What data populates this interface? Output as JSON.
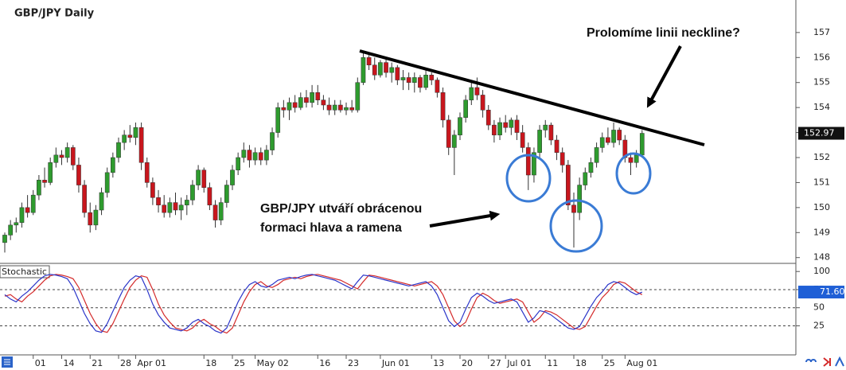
{
  "chart_data": [
    {
      "type": "candlestick",
      "title": "GBP/JPY Daily",
      "categories": [
        null,
        null,
        null,
        null,
        null,
        "01",
        null,
        null,
        null,
        null,
        "14",
        null,
        null,
        null,
        null,
        "21",
        null,
        null,
        null,
        null,
        "28",
        null,
        null,
        "Apr 01",
        null,
        null,
        null,
        null,
        null,
        null,
        null,
        null,
        null,
        null,
        null,
        "18",
        null,
        null,
        null,
        null,
        "25",
        null,
        null,
        null,
        "May 02",
        null,
        null,
        null,
        null,
        null,
        null,
        null,
        null,
        null,
        null,
        "16",
        null,
        null,
        null,
        null,
        "23",
        null,
        null,
        null,
        null,
        null,
        "Jun 01",
        null,
        null,
        null,
        null,
        null,
        null,
        null,
        null,
        "13",
        null,
        null,
        null,
        null,
        "20",
        null,
        null,
        null,
        null,
        "27",
        null,
        null,
        "Jul 01",
        null,
        null,
        null,
        null,
        null,
        null,
        "11",
        null,
        null,
        null,
        null,
        "18",
        null,
        null,
        null,
        null,
        "25",
        null,
        null,
        null,
        "Aug 01",
        null,
        null,
        null
      ],
      "ohlc": [
        [
          148.6,
          149.0,
          148.2,
          148.9
        ],
        [
          148.9,
          149.5,
          148.7,
          149.3
        ],
        [
          149.3,
          149.6,
          149.0,
          149.4
        ],
        [
          149.4,
          150.2,
          149.2,
          150.0
        ],
        [
          150.0,
          150.5,
          149.6,
          149.8
        ],
        [
          149.8,
          150.7,
          149.7,
          150.5
        ],
        [
          150.5,
          151.3,
          150.3,
          151.1
        ],
        [
          151.1,
          151.6,
          150.8,
          151.0
        ],
        [
          151.0,
          152.0,
          150.9,
          151.8
        ],
        [
          151.8,
          152.4,
          151.6,
          152.1
        ],
        [
          152.1,
          152.3,
          151.7,
          152.0
        ],
        [
          152.0,
          152.6,
          151.8,
          152.4
        ],
        [
          152.4,
          152.5,
          151.5,
          151.7
        ],
        [
          151.7,
          152.0,
          150.6,
          150.9
        ],
        [
          150.9,
          151.1,
          149.6,
          149.8
        ],
        [
          149.8,
          150.2,
          149.0,
          149.3
        ],
        [
          149.3,
          150.1,
          149.1,
          149.9
        ],
        [
          149.9,
          150.8,
          149.7,
          150.6
        ],
        [
          150.6,
          151.6,
          150.4,
          151.4
        ],
        [
          151.4,
          152.2,
          151.2,
          152.0
        ],
        [
          152.0,
          152.8,
          151.8,
          152.6
        ],
        [
          152.6,
          153.1,
          152.3,
          152.9
        ],
        [
          152.9,
          153.3,
          152.6,
          152.8
        ],
        [
          152.8,
          153.4,
          152.5,
          153.2
        ],
        [
          153.2,
          153.4,
          151.5,
          151.8
        ],
        [
          151.8,
          152.0,
          150.8,
          151.0
        ],
        [
          151.0,
          151.2,
          150.1,
          150.4
        ],
        [
          150.4,
          150.7,
          149.8,
          150.1
        ],
        [
          150.1,
          150.5,
          149.6,
          149.8
        ],
        [
          149.8,
          150.4,
          149.6,
          150.2
        ],
        [
          150.2,
          150.6,
          149.7,
          149.9
        ],
        [
          149.9,
          150.4,
          149.5,
          150.1
        ],
        [
          150.1,
          150.5,
          149.7,
          150.3
        ],
        [
          150.3,
          151.1,
          150.1,
          150.9
        ],
        [
          150.9,
          151.7,
          150.7,
          151.5
        ],
        [
          151.5,
          151.6,
          150.6,
          150.8
        ],
        [
          150.8,
          151.0,
          149.9,
          150.1
        ],
        [
          150.1,
          150.3,
          149.2,
          149.5
        ],
        [
          149.5,
          150.4,
          149.3,
          150.2
        ],
        [
          150.2,
          151.1,
          150.0,
          150.9
        ],
        [
          150.9,
          151.7,
          150.7,
          151.5
        ],
        [
          151.5,
          152.2,
          151.3,
          152.0
        ],
        [
          152.0,
          152.6,
          151.8,
          152.3
        ],
        [
          152.3,
          152.5,
          151.6,
          151.9
        ],
        [
          151.9,
          152.4,
          151.7,
          152.2
        ],
        [
          152.2,
          152.4,
          151.7,
          151.9
        ],
        [
          151.9,
          152.5,
          151.7,
          152.3
        ],
        [
          152.3,
          153.2,
          152.1,
          153.0
        ],
        [
          153.0,
          154.2,
          152.8,
          154.0
        ],
        [
          154.0,
          154.3,
          153.6,
          153.9
        ],
        [
          153.9,
          154.4,
          153.5,
          154.2
        ],
        [
          154.2,
          154.5,
          153.8,
          154.0
        ],
        [
          154.0,
          154.6,
          153.9,
          154.4
        ],
        [
          154.4,
          154.7,
          154.0,
          154.2
        ],
        [
          154.2,
          154.9,
          154.0,
          154.6
        ],
        [
          154.6,
          154.9,
          154.1,
          154.3
        ],
        [
          154.3,
          154.5,
          153.9,
          154.1
        ],
        [
          154.1,
          154.4,
          153.7,
          153.9
        ],
        [
          153.9,
          154.3,
          153.7,
          154.1
        ],
        [
          154.1,
          154.3,
          153.8,
          153.9
        ],
        [
          153.9,
          154.2,
          153.7,
          154.0
        ],
        [
          154.0,
          154.3,
          153.8,
          153.9
        ],
        [
          153.9,
          155.2,
          153.8,
          155.0
        ],
        [
          155.0,
          156.2,
          154.9,
          156.0
        ],
        [
          156.0,
          156.1,
          155.5,
          155.7
        ],
        [
          155.7,
          156.0,
          155.1,
          155.3
        ],
        [
          155.3,
          155.9,
          155.2,
          155.8
        ],
        [
          155.8,
          156.0,
          155.2,
          155.4
        ],
        [
          155.4,
          155.8,
          155.0,
          155.6
        ],
        [
          155.6,
          155.7,
          154.9,
          155.1
        ],
        [
          155.1,
          155.5,
          154.7,
          155.2
        ],
        [
          155.2,
          155.4,
          154.7,
          155.0
        ],
        [
          155.0,
          155.4,
          154.6,
          155.2
        ],
        [
          155.2,
          155.3,
          154.6,
          154.8
        ],
        [
          154.8,
          155.5,
          154.7,
          155.3
        ],
        [
          155.3,
          155.4,
          154.9,
          155.1
        ],
        [
          155.1,
          155.2,
          154.4,
          154.6
        ],
        [
          154.6,
          154.8,
          153.2,
          153.5
        ],
        [
          153.5,
          153.7,
          152.1,
          152.4
        ],
        [
          152.4,
          153.1,
          151.3,
          152.9
        ],
        [
          152.9,
          153.8,
          152.7,
          153.6
        ],
        [
          153.6,
          154.5,
          153.4,
          154.3
        ],
        [
          154.3,
          155.1,
          154.1,
          154.8
        ],
        [
          154.8,
          155.2,
          154.3,
          154.5
        ],
        [
          154.5,
          154.7,
          153.6,
          153.9
        ],
        [
          153.9,
          154.1,
          153.1,
          153.3
        ],
        [
          153.3,
          153.5,
          152.6,
          152.9
        ],
        [
          152.9,
          153.6,
          152.7,
          153.4
        ],
        [
          153.4,
          153.7,
          153.0,
          153.2
        ],
        [
          153.2,
          153.6,
          152.9,
          153.5
        ],
        [
          153.5,
          153.7,
          152.7,
          153.0
        ],
        [
          153.0,
          153.3,
          152.2,
          152.4
        ],
        [
          152.4,
          152.6,
          150.7,
          151.3
        ],
        [
          151.3,
          152.4,
          151.0,
          152.2
        ],
        [
          152.2,
          153.3,
          152.0,
          153.1
        ],
        [
          153.1,
          153.5,
          152.8,
          153.3
        ],
        [
          153.3,
          153.4,
          152.5,
          152.7
        ],
        [
          152.7,
          152.9,
          151.9,
          152.2
        ],
        [
          152.2,
          152.4,
          151.4,
          151.7
        ],
        [
          151.7,
          151.9,
          149.9,
          150.1
        ],
        [
          150.1,
          150.6,
          148.4,
          149.8
        ],
        [
          149.8,
          151.2,
          149.5,
          150.9
        ],
        [
          150.9,
          151.6,
          150.7,
          151.4
        ],
        [
          151.4,
          152.0,
          151.2,
          151.8
        ],
        [
          151.8,
          152.6,
          151.6,
          152.4
        ],
        [
          152.4,
          153.0,
          152.2,
          152.8
        ],
        [
          152.8,
          153.2,
          152.5,
          152.6
        ],
        [
          152.6,
          153.4,
          152.4,
          153.1
        ],
        [
          153.1,
          153.2,
          152.5,
          152.7
        ],
        [
          152.7,
          152.9,
          151.8,
          152.0
        ],
        [
          152.0,
          152.2,
          151.3,
          151.8
        ],
        [
          151.8,
          152.3,
          151.6,
          152.1
        ],
        [
          152.1,
          153.1,
          152.0,
          152.97
        ]
      ],
      "up_color": "#2e9b2e",
      "down_color": "#c8161d",
      "ylim": [
        147.8,
        158.3
      ],
      "yticks": [
        148,
        149,
        150,
        151,
        152,
        153,
        154,
        155,
        156,
        157
      ],
      "grid": false,
      "annotations": [
        "Prolomíme linii neckline?",
        "GBP/JPY utváří obrácenou",
        "formaci hlava a ramena"
      ]
    },
    {
      "type": "line",
      "title": "Stochastic",
      "series": [
        {
          "color": "#2b35c9",
          "last_value_label": "71.60",
          "values": [
            68,
            62,
            58,
            66,
            72,
            80,
            88,
            94,
            96,
            95,
            93,
            90,
            78,
            60,
            42,
            28,
            18,
            16,
            28,
            45,
            62,
            78,
            88,
            94,
            92,
            75,
            55,
            40,
            30,
            22,
            20,
            18,
            22,
            30,
            34,
            28,
            24,
            18,
            15,
            22,
            40,
            58,
            72,
            82,
            86,
            80,
            78,
            82,
            88,
            90,
            92,
            90,
            93,
            95,
            96,
            94,
            92,
            90,
            88,
            84,
            80,
            76,
            86,
            95,
            94,
            92,
            90,
            88,
            86,
            84,
            82,
            80,
            82,
            84,
            86,
            80,
            68,
            50,
            32,
            24,
            30,
            48,
            64,
            70,
            66,
            60,
            56,
            58,
            60,
            62,
            58,
            44,
            30,
            36,
            46,
            44,
            40,
            34,
            28,
            22,
            20,
            24,
            38,
            52,
            64,
            72,
            82,
            86,
            84,
            78,
            72,
            68,
            71.6
          ]
        },
        {
          "color": "#d42a2a",
          "values": [
            66,
            68,
            62,
            58,
            66,
            72,
            80,
            88,
            94,
            96,
            95,
            93,
            90,
            78,
            60,
            42,
            28,
            18,
            16,
            28,
            45,
            62,
            78,
            88,
            94,
            92,
            75,
            55,
            40,
            30,
            22,
            20,
            18,
            22,
            30,
            34,
            28,
            24,
            18,
            15,
            22,
            40,
            58,
            72,
            82,
            86,
            80,
            78,
            82,
            88,
            90,
            92,
            90,
            93,
            95,
            96,
            94,
            92,
            90,
            88,
            84,
            80,
            76,
            86,
            95,
            94,
            92,
            90,
            88,
            86,
            84,
            82,
            80,
            82,
            84,
            86,
            80,
            68,
            50,
            32,
            24,
            30,
            48,
            64,
            70,
            66,
            60,
            56,
            58,
            60,
            62,
            58,
            44,
            30,
            36,
            46,
            44,
            40,
            34,
            28,
            22,
            20,
            24,
            38,
            52,
            64,
            72,
            82,
            86,
            84,
            78,
            72,
            68
          ]
        }
      ],
      "ylim": [
        -14,
        109
      ],
      "yticks": [
        100,
        75,
        50,
        25
      ],
      "grid": true
    }
  ]
}
